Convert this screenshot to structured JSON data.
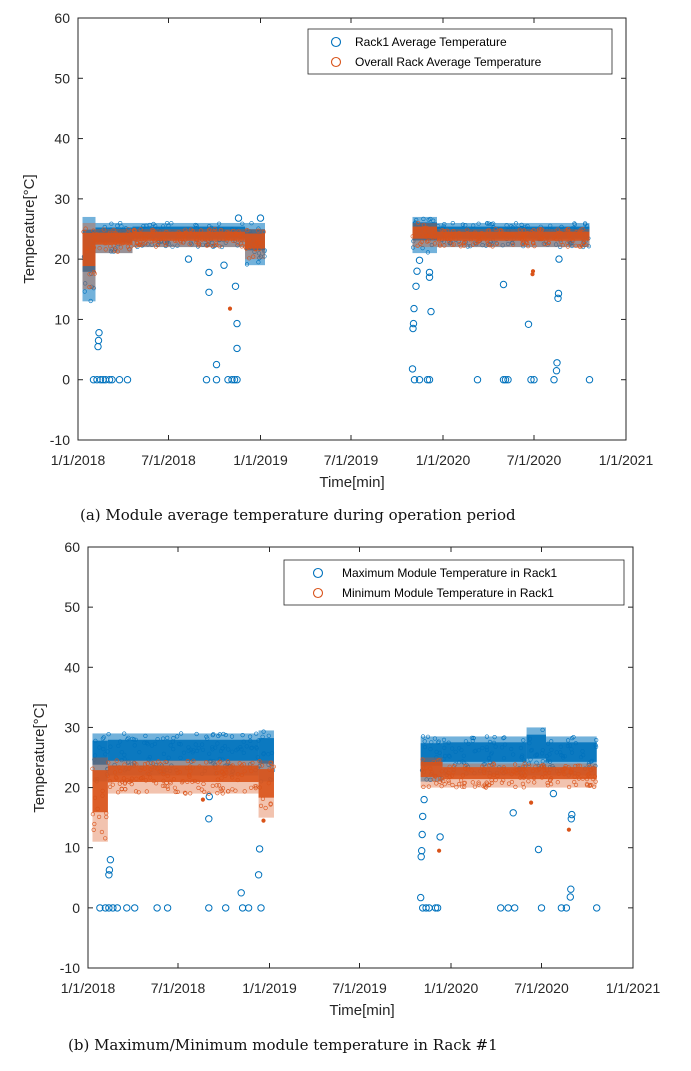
{
  "chart_data": [
    {
      "type": "scatter",
      "caption": "(a) Module average temperature during operation period",
      "xlabel": "Time[min]",
      "ylabel": "Temperature[°C]",
      "ylim": [
        -10,
        60
      ],
      "yticks": [
        "-10",
        "0",
        "10",
        "20",
        "30",
        "40",
        "50",
        "60"
      ],
      "xticks": [
        "1/1/2018",
        "7/1/2018",
        "1/1/2019",
        "7/1/2019",
        "1/1/2020",
        "7/1/2020",
        "1/1/2021"
      ],
      "grid": false,
      "legend_position": "top-right",
      "series": [
        {
          "name": "Rack1 Average Temperature",
          "color": "#0072BD",
          "bands": [
            {
              "x0": "2018-01-10",
              "x1": "2018-02-05",
              "ylow": 13,
              "yhigh": 27
            },
            {
              "x0": "2018-02-05",
              "x1": "2018-04-20",
              "ylow": 21,
              "yhigh": 26
            },
            {
              "x0": "2018-04-20",
              "x1": "2018-12-01",
              "ylow": 22,
              "yhigh": 26
            },
            {
              "x0": "2018-12-01",
              "x1": "2019-01-10",
              "ylow": 19,
              "yhigh": 26
            },
            {
              "x0": "2019-11-01",
              "x1": "2019-12-20",
              "ylow": 21,
              "yhigh": 27
            },
            {
              "x0": "2019-12-20",
              "x1": "2020-06-25",
              "ylow": 22,
              "yhigh": 26
            },
            {
              "x0": "2020-06-25",
              "x1": "2020-10-20",
              "ylow": 22,
              "yhigh": 26
            }
          ],
          "outliers": [
            {
              "x": "2018-02-10",
              "y": 5.5
            },
            {
              "x": "2018-02-11",
              "y": 6.5
            },
            {
              "x": "2018-02-12",
              "y": 7.8
            },
            {
              "x": "2018-02-01",
              "y": 0
            },
            {
              "x": "2018-02-08",
              "y": 0
            },
            {
              "x": "2018-02-15",
              "y": 0
            },
            {
              "x": "2018-02-20",
              "y": 0
            },
            {
              "x": "2018-02-25",
              "y": 0
            },
            {
              "x": "2018-03-05",
              "y": 0
            },
            {
              "x": "2018-03-10",
              "y": 0
            },
            {
              "x": "2018-03-25",
              "y": 0
            },
            {
              "x": "2018-04-10",
              "y": 0
            },
            {
              "x": "2018-08-10",
              "y": 20
            },
            {
              "x": "2018-09-20",
              "y": 14.5
            },
            {
              "x": "2018-09-20",
              "y": 17.8
            },
            {
              "x": "2018-10-05",
              "y": 2.5
            },
            {
              "x": "2018-10-20",
              "y": 19
            },
            {
              "x": "2018-11-12",
              "y": 15.5
            },
            {
              "x": "2018-11-15",
              "y": 9.3
            },
            {
              "x": "2018-11-15",
              "y": 5.2
            },
            {
              "x": "2018-11-18",
              "y": 26.8
            },
            {
              "x": "2019-01-01",
              "y": 26.8
            },
            {
              "x": "2018-09-15",
              "y": 0
            },
            {
              "x": "2018-10-05",
              "y": 0
            },
            {
              "x": "2018-10-28",
              "y": 0
            },
            {
              "x": "2018-11-05",
              "y": 0
            },
            {
              "x": "2018-11-10",
              "y": 0
            },
            {
              "x": "2018-11-15",
              "y": 0
            },
            {
              "x": "2019-11-01",
              "y": 1.8
            },
            {
              "x": "2019-11-02",
              "y": 8.5
            },
            {
              "x": "2019-11-03",
              "y": 9.3
            },
            {
              "x": "2019-11-04",
              "y": 11.8
            },
            {
              "x": "2019-11-08",
              "y": 15.5
            },
            {
              "x": "2019-11-10",
              "y": 18
            },
            {
              "x": "2019-11-15",
              "y": 19.8
            },
            {
              "x": "2019-12-05",
              "y": 17
            },
            {
              "x": "2019-12-05",
              "y": 17.8
            },
            {
              "x": "2019-12-08",
              "y": 11.3
            },
            {
              "x": "2019-11-05",
              "y": 0
            },
            {
              "x": "2019-11-15",
              "y": 0
            },
            {
              "x": "2019-12-01",
              "y": 0
            },
            {
              "x": "2019-12-05",
              "y": 0
            },
            {
              "x": "2020-03-10",
              "y": 0
            },
            {
              "x": "2020-05-01",
              "y": 0
            },
            {
              "x": "2020-05-05",
              "y": 0
            },
            {
              "x": "2020-05-10",
              "y": 0
            },
            {
              "x": "2020-05-01",
              "y": 15.8
            },
            {
              "x": "2020-06-20",
              "y": 9.2
            },
            {
              "x": "2020-06-25",
              "y": 0
            },
            {
              "x": "2020-07-01",
              "y": 0
            },
            {
              "x": "2020-08-10",
              "y": 0
            },
            {
              "x": "2020-08-15",
              "y": 1.5
            },
            {
              "x": "2020-08-16",
              "y": 2.8
            },
            {
              "x": "2020-08-18",
              "y": 13.5
            },
            {
              "x": "2020-08-19",
              "y": 14.3
            },
            {
              "x": "2020-08-20",
              "y": 20
            },
            {
              "x": "2020-10-20",
              "y": 0
            }
          ]
        },
        {
          "name": "Overall Rack Average Temperature",
          "color": "#D95319",
          "bands": [
            {
              "x0": "2018-01-10",
              "x1": "2018-02-05",
              "ylow": 15,
              "yhigh": 26
            },
            {
              "x0": "2018-02-05",
              "x1": "2018-04-20",
              "ylow": 21,
              "yhigh": 25
            },
            {
              "x0": "2018-04-20",
              "x1": "2018-12-01",
              "ylow": 22,
              "yhigh": 25
            },
            {
              "x0": "2018-12-01",
              "x1": "2019-01-10",
              "ylow": 20,
              "yhigh": 25
            },
            {
              "x0": "2019-11-01",
              "x1": "2019-12-20",
              "ylow": 22,
              "yhigh": 26
            },
            {
              "x0": "2019-12-20",
              "x1": "2020-06-25",
              "ylow": 22,
              "yhigh": 25
            },
            {
              "x0": "2020-06-25",
              "x1": "2020-10-20",
              "ylow": 22,
              "yhigh": 25
            }
          ],
          "outliers": [
            {
              "x": "2018-11-01",
              "y": 11.8
            },
            {
              "x": "2020-06-28",
              "y": 17.5
            },
            {
              "x": "2020-06-29",
              "y": 18
            }
          ]
        }
      ]
    },
    {
      "type": "scatter",
      "caption": "(b) Maximum/Minimum module temperature in Rack #1",
      "xlabel": "Time[min]",
      "ylabel": "Temperature[°C]",
      "ylim": [
        -10,
        60
      ],
      "yticks": [
        "-10",
        "0",
        "10",
        "20",
        "30",
        "40",
        "50",
        "60"
      ],
      "xticks": [
        "1/1/2018",
        "7/1/2018",
        "1/1/2019",
        "7/1/2019",
        "1/1/2020",
        "7/1/2020",
        "1/1/2021"
      ],
      "grid": false,
      "legend_position": "top-right",
      "series": [
        {
          "name": "Maximum Module Temperature in Rack1",
          "color": "#0072BD",
          "bands": [
            {
              "x0": "2018-01-10",
              "x1": "2018-02-10",
              "ylow": 21,
              "yhigh": 29
            },
            {
              "x0": "2018-02-10",
              "x1": "2018-12-10",
              "ylow": 22,
              "yhigh": 29
            },
            {
              "x0": "2018-12-10",
              "x1": "2019-01-10",
              "ylow": 21,
              "yhigh": 29.5
            },
            {
              "x0": "2019-11-01",
              "x1": "2019-12-15",
              "ylow": 21,
              "yhigh": 28.5
            },
            {
              "x0": "2019-12-15",
              "x1": "2020-06-01",
              "ylow": 22,
              "yhigh": 28.5
            },
            {
              "x0": "2020-06-01",
              "x1": "2020-07-10",
              "ylow": 22,
              "yhigh": 30
            },
            {
              "x0": "2020-07-10",
              "x1": "2020-10-20",
              "ylow": 22,
              "yhigh": 28.5
            }
          ],
          "outliers": [
            {
              "x": "2018-02-12",
              "y": 5.5
            },
            {
              "x": "2018-02-13",
              "y": 6.3
            },
            {
              "x": "2018-02-15",
              "y": 8
            },
            {
              "x": "2018-01-25",
              "y": 0
            },
            {
              "x": "2018-02-05",
              "y": 0
            },
            {
              "x": "2018-02-12",
              "y": 0
            },
            {
              "x": "2018-02-20",
              "y": 0
            },
            {
              "x": "2018-03-01",
              "y": 0
            },
            {
              "x": "2018-03-20",
              "y": 0
            },
            {
              "x": "2018-04-05",
              "y": 0
            },
            {
              "x": "2018-05-20",
              "y": 0
            },
            {
              "x": "2018-06-10",
              "y": 0
            },
            {
              "x": "2018-09-01",
              "y": 14.8
            },
            {
              "x": "2018-09-02",
              "y": 18.5
            },
            {
              "x": "2018-09-01",
              "y": 0
            },
            {
              "x": "2018-10-05",
              "y": 0
            },
            {
              "x": "2018-11-05",
              "y": 2.5
            },
            {
              "x": "2018-11-08",
              "y": 0
            },
            {
              "x": "2018-11-20",
              "y": 0
            },
            {
              "x": "2018-12-10",
              "y": 5.5
            },
            {
              "x": "2018-12-12",
              "y": 9.8
            },
            {
              "x": "2018-12-15",
              "y": 0
            },
            {
              "x": "2019-11-01",
              "y": 1.7
            },
            {
              "x": "2019-11-02",
              "y": 8.5
            },
            {
              "x": "2019-11-03",
              "y": 9.5
            },
            {
              "x": "2019-11-04",
              "y": 12.2
            },
            {
              "x": "2019-11-05",
              "y": 15.2
            },
            {
              "x": "2019-11-08",
              "y": 18
            },
            {
              "x": "2019-11-05",
              "y": 0
            },
            {
              "x": "2019-11-12",
              "y": 0
            },
            {
              "x": "2019-11-18",
              "y": 0
            },
            {
              "x": "2019-12-01",
              "y": 0
            },
            {
              "x": "2019-12-05",
              "y": 0
            },
            {
              "x": "2019-12-10",
              "y": 11.8
            },
            {
              "x": "2020-04-10",
              "y": 0
            },
            {
              "x": "2020-04-25",
              "y": 0
            },
            {
              "x": "2020-05-05",
              "y": 15.8
            },
            {
              "x": "2020-05-08",
              "y": 0
            },
            {
              "x": "2020-06-25",
              "y": 9.7
            },
            {
              "x": "2020-07-01",
              "y": 0
            },
            {
              "x": "2020-07-25",
              "y": 19
            },
            {
              "x": "2020-08-10",
              "y": 0
            },
            {
              "x": "2020-08-20",
              "y": 0
            },
            {
              "x": "2020-08-28",
              "y": 1.8
            },
            {
              "x": "2020-08-29",
              "y": 3.1
            },
            {
              "x": "2020-08-30",
              "y": 14.8
            },
            {
              "x": "2020-08-31",
              "y": 15.5
            },
            {
              "x": "2020-10-20",
              "y": 0
            }
          ]
        },
        {
          "name": "Minimum Module Temperature in Rack1",
          "color": "#D95319",
          "bands": [
            {
              "x0": "2018-01-10",
              "x1": "2018-02-10",
              "ylow": 11,
              "yhigh": 25
            },
            {
              "x0": "2018-02-10",
              "x1": "2018-12-10",
              "ylow": 19,
              "yhigh": 24.5
            },
            {
              "x0": "2018-12-10",
              "x1": "2019-01-10",
              "ylow": 15,
              "yhigh": 24.5
            },
            {
              "x0": "2019-11-01",
              "x1": "2019-12-15",
              "ylow": 20,
              "yhigh": 25
            },
            {
              "x0": "2019-12-15",
              "x1": "2020-06-01",
              "ylow": 20,
              "yhigh": 24
            },
            {
              "x0": "2020-06-01",
              "x1": "2020-07-10",
              "ylow": 20,
              "yhigh": 24
            },
            {
              "x0": "2020-07-10",
              "x1": "2020-10-20",
              "ylow": 20,
              "yhigh": 24
            }
          ],
          "outliers": [
            {
              "x": "2018-08-20",
              "y": 18
            },
            {
              "x": "2018-12-20",
              "y": 14.5
            },
            {
              "x": "2019-12-08",
              "y": 9.5
            },
            {
              "x": "2020-06-10",
              "y": 17.5
            },
            {
              "x": "2020-08-25",
              "y": 13
            }
          ]
        }
      ]
    }
  ]
}
